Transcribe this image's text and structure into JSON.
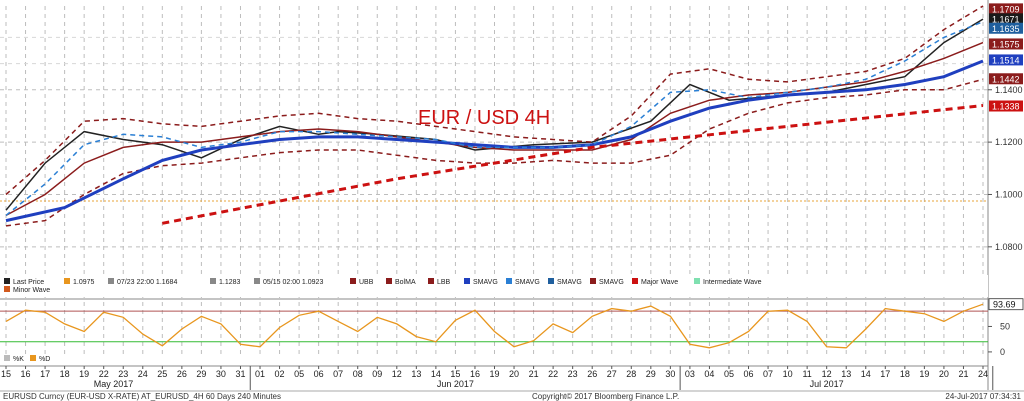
{
  "chart_data": [
    {
      "type": "line",
      "title": "EUR / USD 4H",
      "price_scale": {
        "ylim": [
          1.07,
          1.172
        ],
        "ticks": [
          "1.1400",
          "1.1200",
          "1.1000",
          "1.0800"
        ]
      },
      "price_tags": [
        {
          "label": "1.1709",
          "value": 1.1709,
          "color": "#8b1c1c"
        },
        {
          "label": "1.1671",
          "value": 1.1671,
          "color": "#1a1a1a"
        },
        {
          "label": "1.1635",
          "value": 1.1635,
          "color": "#1f5f9e"
        },
        {
          "label": "1.1575",
          "value": 1.1575,
          "color": "#8b1c1c"
        },
        {
          "label": "1.1514",
          "value": 1.1514,
          "color": "#1f3fbf"
        },
        {
          "label": "1.1442",
          "value": 1.1442,
          "color": "#8b1c1c"
        },
        {
          "label": "1.1338",
          "value": 1.1338,
          "color": "#cc1111"
        }
      ],
      "x_labels": [
        "15",
        "16",
        "17",
        "18",
        "19",
        "22",
        "23",
        "24",
        "25",
        "26",
        "29",
        "30",
        "31",
        "01",
        "02",
        "05",
        "06",
        "07",
        "08",
        "09",
        "12",
        "13",
        "14",
        "15",
        "16",
        "19",
        "20",
        "21",
        "22",
        "23",
        "26",
        "27",
        "28",
        "29",
        "30",
        "03",
        "04",
        "05",
        "06",
        "07",
        "10",
        "11",
        "12",
        "13",
        "14",
        "17",
        "18",
        "19",
        "20",
        "21",
        "24"
      ],
      "months": [
        "May 2017",
        "Jun 2017",
        "Jul 2017"
      ],
      "legend": [
        {
          "label": "Last Price",
          "color": "#222222"
        },
        {
          "label": "1.0975",
          "color": "#e8961e"
        },
        {
          "label": "07/23 22:00 1.1684",
          "color": "#888888"
        },
        {
          "label": "1.1283",
          "color": "#888888"
        },
        {
          "label": "05/15 02:00 1.0923",
          "color": "#888888"
        },
        {
          "label": "UBB",
          "color": "#8b1c1c"
        },
        {
          "label": "BolMA",
          "color": "#8b1c1c"
        },
        {
          "label": "LBB",
          "color": "#8b1c1c"
        },
        {
          "label": "SMAVG",
          "color": "#1f3fbf"
        },
        {
          "label": "SMAVG",
          "color": "#2a7fd4"
        },
        {
          "label": "SMAVG",
          "color": "#1f5f9e"
        },
        {
          "label": "SMAVG",
          "color": "#8b1c1c"
        },
        {
          "label": "Major Wave",
          "color": "#cc1111"
        },
        {
          "label": "Intermediate Wave",
          "color": "#7fe0b0"
        },
        {
          "label": "Minor Wave",
          "color": "#d25a1e"
        }
      ],
      "series": [
        {
          "name": "Last Price",
          "color": "#222222",
          "x": [
            0,
            2,
            4,
            6,
            8,
            10,
            12,
            14,
            16,
            17,
            19,
            22,
            24,
            27,
            30,
            33,
            35,
            37,
            40,
            42,
            44,
            46,
            48,
            50
          ],
          "y": [
            1.094,
            1.112,
            1.124,
            1.121,
            1.119,
            1.114,
            1.121,
            1.126,
            1.123,
            1.124,
            1.123,
            1.121,
            1.117,
            1.119,
            1.12,
            1.128,
            1.142,
            1.136,
            1.138,
            1.139,
            1.142,
            1.145,
            1.158,
            1.167
          ]
        },
        {
          "name": "UBB",
          "color": "#8b1c1c",
          "dash": true,
          "x": [
            0,
            2,
            4,
            6,
            8,
            10,
            12,
            14,
            16,
            18,
            20,
            22,
            24,
            26,
            28,
            30,
            32,
            34,
            36,
            38,
            40,
            42,
            44,
            46,
            48,
            50
          ],
          "y": [
            1.1,
            1.113,
            1.128,
            1.129,
            1.127,
            1.126,
            1.128,
            1.13,
            1.131,
            1.129,
            1.128,
            1.126,
            1.124,
            1.122,
            1.121,
            1.12,
            1.13,
            1.146,
            1.148,
            1.144,
            1.143,
            1.145,
            1.147,
            1.152,
            1.163,
            1.172
          ]
        },
        {
          "name": "LBB",
          "color": "#8b1c1c",
          "dash": true,
          "x": [
            0,
            2,
            4,
            6,
            8,
            10,
            12,
            14,
            16,
            18,
            20,
            22,
            24,
            26,
            28,
            30,
            32,
            34,
            36,
            38,
            40,
            42,
            44,
            46,
            48,
            50
          ],
          "y": [
            1.088,
            1.09,
            1.1,
            1.108,
            1.111,
            1.112,
            1.114,
            1.116,
            1.117,
            1.117,
            1.115,
            1.113,
            1.112,
            1.112,
            1.113,
            1.112,
            1.112,
            1.115,
            1.125,
            1.131,
            1.135,
            1.137,
            1.138,
            1.14,
            1.14,
            1.144
          ]
        },
        {
          "name": "BolMA",
          "color": "#8b1c1c",
          "x": [
            0,
            2,
            4,
            6,
            8,
            10,
            12,
            14,
            16,
            18,
            20,
            22,
            24,
            26,
            28,
            30,
            32,
            34,
            36,
            38,
            40,
            42,
            44,
            46,
            48,
            50
          ],
          "y": [
            1.092,
            1.1,
            1.112,
            1.118,
            1.12,
            1.12,
            1.122,
            1.124,
            1.125,
            1.124,
            1.122,
            1.12,
            1.118,
            1.117,
            1.117,
            1.117,
            1.121,
            1.131,
            1.136,
            1.138,
            1.139,
            1.141,
            1.143,
            1.147,
            1.152,
            1.158
          ]
        },
        {
          "name": "SMAVG",
          "color": "#1f3fbf",
          "width": 3,
          "x": [
            0,
            3,
            6,
            8,
            10,
            12,
            14,
            16,
            18,
            20,
            22,
            24,
            26,
            28,
            30,
            32,
            34,
            36,
            38,
            40,
            42,
            44,
            46,
            48,
            50
          ],
          "y": [
            1.09,
            1.095,
            1.106,
            1.113,
            1.117,
            1.119,
            1.121,
            1.122,
            1.122,
            1.121,
            1.12,
            1.119,
            1.118,
            1.118,
            1.119,
            1.122,
            1.128,
            1.133,
            1.136,
            1.138,
            1.139,
            1.14,
            1.142,
            1.145,
            1.151
          ]
        },
        {
          "name": "SMAVG",
          "color": "#2a7fd4",
          "dash": true,
          "x": [
            0,
            2,
            4,
            6,
            8,
            10,
            12,
            14,
            16,
            18,
            20,
            22,
            24,
            26,
            28,
            30,
            32,
            34,
            36,
            38,
            40,
            42,
            44,
            46,
            48,
            50
          ],
          "y": [
            1.092,
            1.104,
            1.119,
            1.123,
            1.122,
            1.118,
            1.12,
            1.124,
            1.124,
            1.123,
            1.122,
            1.121,
            1.118,
            1.118,
            1.118,
            1.119,
            1.126,
            1.139,
            1.14,
            1.137,
            1.139,
            1.141,
            1.144,
            1.151,
            1.16,
            1.166
          ]
        },
        {
          "name": "Major Wave",
          "color": "#cc1111",
          "dash": true,
          "width": 3,
          "x": [
            8,
            20,
            30,
            40,
            50
          ],
          "y": [
            1.089,
            1.106,
            1.118,
            1.126,
            1.134
          ]
        }
      ]
    },
    {
      "type": "line",
      "ylim": [
        -10,
        100
      ],
      "ticks": [
        "50",
        "0"
      ],
      "value_tag": "93.69",
      "legend": [
        {
          "label": "%K",
          "color": "#bbbbbb"
        },
        {
          "label": "%D",
          "color": "#e8961e"
        }
      ],
      "series": [
        {
          "name": "%D",
          "color": "#e8961e",
          "x": [
            0,
            1,
            2,
            3,
            4,
            5,
            6,
            7,
            8,
            9,
            10,
            11,
            12,
            13,
            14,
            15,
            16,
            17,
            18,
            19,
            20,
            21,
            22,
            23,
            24,
            25,
            26,
            27,
            28,
            29,
            30,
            31,
            32,
            33,
            34,
            35,
            36,
            37,
            38,
            39,
            40,
            41,
            42,
            43,
            44,
            45,
            46,
            47,
            48,
            49,
            50
          ],
          "y": [
            60,
            82,
            78,
            55,
            40,
            78,
            68,
            35,
            12,
            45,
            70,
            55,
            15,
            10,
            48,
            72,
            80,
            60,
            40,
            68,
            55,
            30,
            20,
            62,
            82,
            40,
            10,
            22,
            55,
            38,
            70,
            85,
            80,
            90,
            70,
            15,
            8,
            18,
            40,
            80,
            82,
            60,
            10,
            8,
            45,
            85,
            80,
            75,
            60,
            80,
            93.69
          ]
        }
      ]
    }
  ],
  "footer": {
    "left": "EURUSD Curncy (EUR-USD X-RATE) AT_EURUSD_4H 60 Days 240 Minutes",
    "center": "Copyright© 2017 Bloomberg Finance L.P.",
    "right": "24-Jul-2017 07:34:31"
  }
}
